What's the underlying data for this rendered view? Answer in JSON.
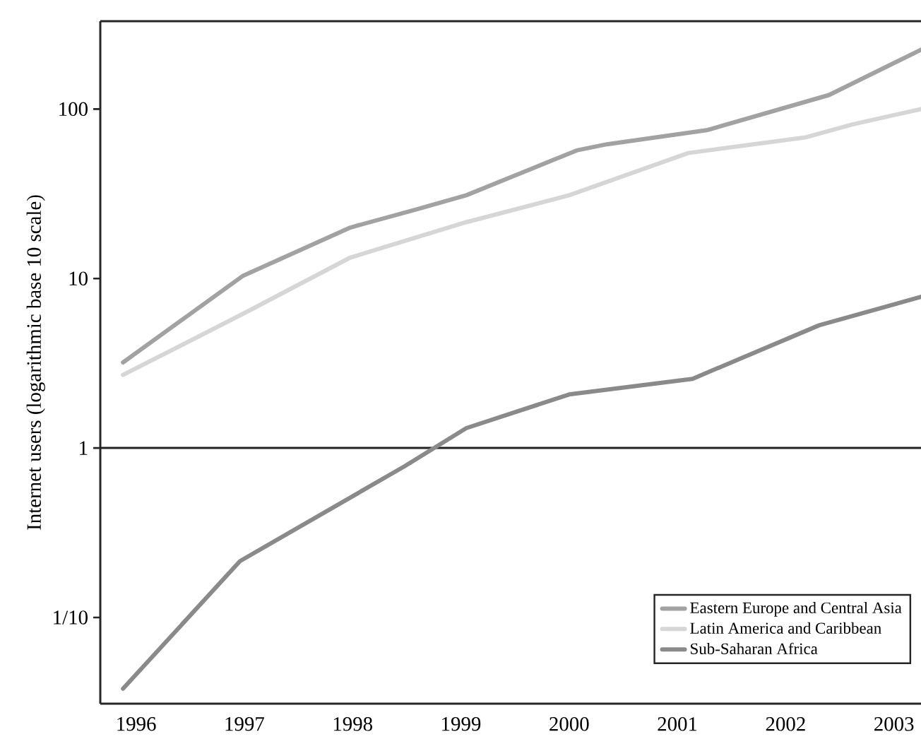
{
  "chart_data": {
    "type": "line",
    "ylabel": "Internet users (logarithmic base 10 scale)",
    "log": "y",
    "xlim": [
      1995.67,
      2003.25
    ],
    "ylim": [
      0.031,
      330
    ],
    "xticks": [
      1996,
      1997,
      1998,
      1999,
      2000,
      2001,
      2002,
      2003
    ],
    "yticks": [
      {
        "value": 0.1,
        "label": "1/10"
      },
      1,
      10,
      100
    ],
    "legend": "bottom right",
    "ref_lines": [
      {
        "axis": "y",
        "value": 1,
        "color": "#222222"
      }
    ],
    "series": [
      {
        "name": "Eastern Europe and Central Asia",
        "color": "#a2a2a2",
        "x": [
          1995.88,
          1996.99,
          1997.98,
          1998.59,
          1999.05,
          2000.07,
          2000.35,
          2001.27,
          2002.4,
          2003.25
        ],
        "values": [
          3.2,
          10.4,
          20,
          25.6,
          31,
          57,
          62,
          75,
          121,
          224
        ]
      },
      {
        "name": "Latin America and Caribbean",
        "color": "#d6d6d6",
        "x": [
          1995.88,
          1996.99,
          1997.98,
          1999.05,
          2000.0,
          2001.1,
          2002.18,
          2002.61,
          2003.25
        ],
        "values": [
          2.7,
          6.2,
          13.3,
          21.5,
          31,
          55,
          68,
          81,
          100
        ]
      },
      {
        "name": "Sub-Saharan Africa",
        "color": "#8a8a8a",
        "x": [
          1995.88,
          1996.96,
          1998.48,
          1999.05,
          2000.0,
          2001.14,
          2002.31,
          2003.25
        ],
        "values": [
          0.038,
          0.215,
          0.78,
          1.31,
          2.07,
          2.56,
          5.3,
          7.8
        ]
      }
    ]
  }
}
